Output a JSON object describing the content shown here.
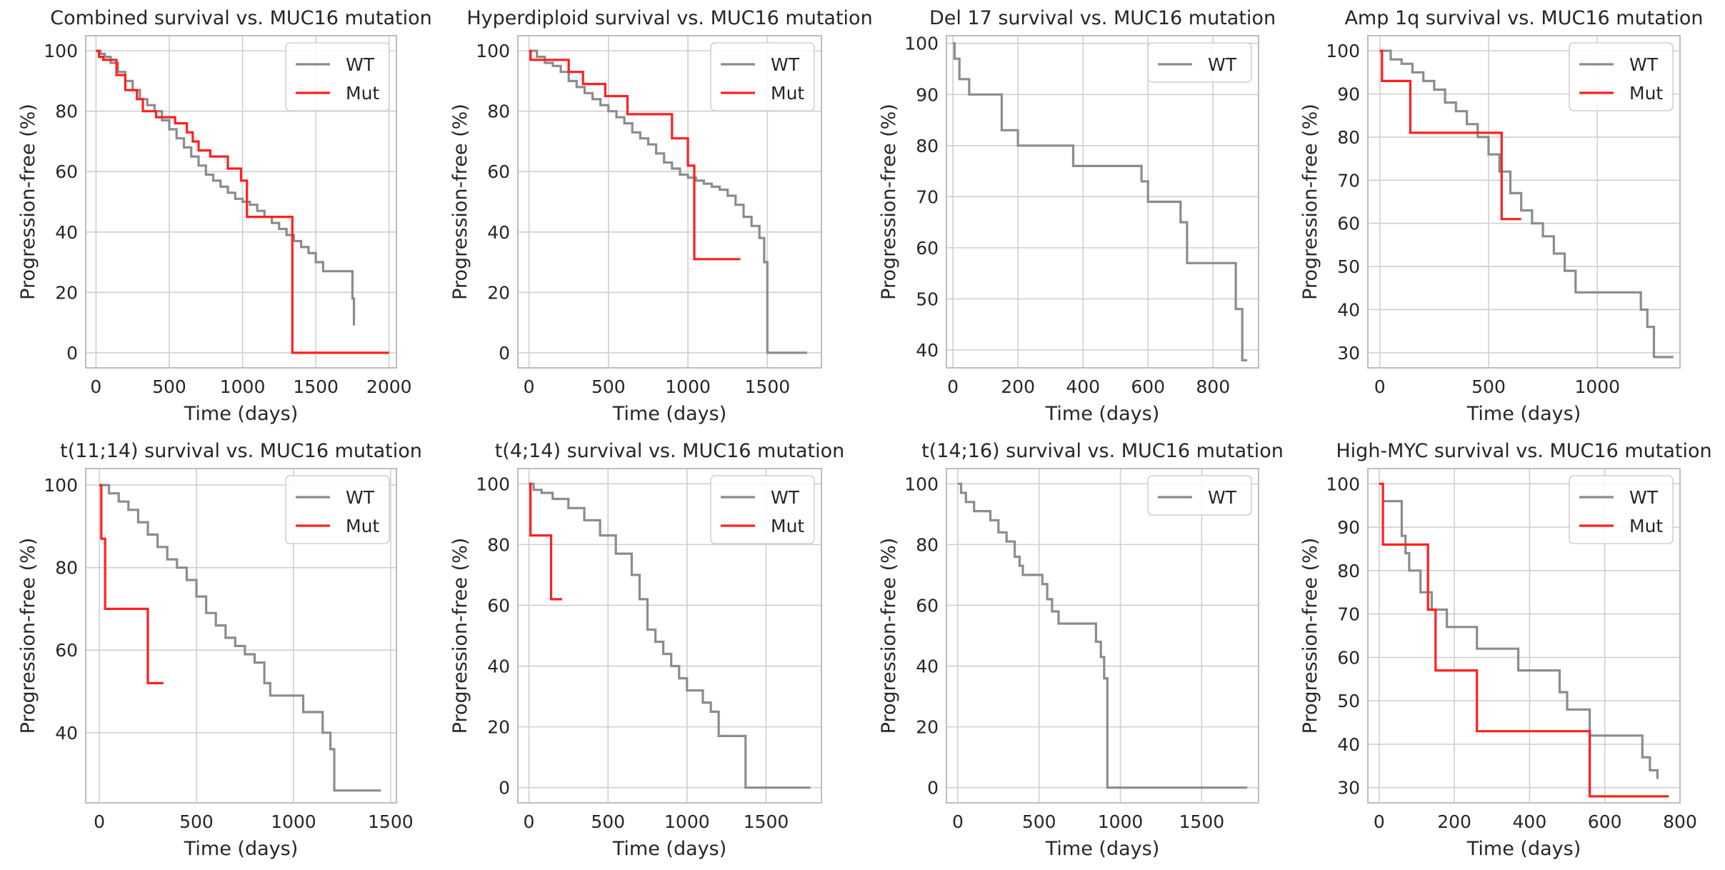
{
  "figure": {
    "wt_color": "#8c8c8c",
    "mut_color": "#ff2020",
    "grid_color": "#cfcfcf",
    "spine_color": "#bdbdbd"
  },
  "chart_data": [
    {
      "type": "line",
      "title": "Combined survival vs. MUC16 mutation",
      "xlabel": "Time (days)",
      "ylabel": "Progression-free (%)",
      "xlim": [
        -70,
        2050
      ],
      "ylim": [
        -5,
        105
      ],
      "xticks": [
        0,
        500,
        1000,
        1500,
        2000
      ],
      "yticks": [
        0,
        20,
        40,
        60,
        80,
        100
      ],
      "legend": [
        "WT",
        "Mut"
      ],
      "legend_position": "top-right",
      "series": [
        {
          "name": "WT",
          "x": [
            0,
            30,
            60,
            100,
            150,
            200,
            250,
            300,
            350,
            400,
            450,
            500,
            550,
            600,
            650,
            700,
            750,
            800,
            850,
            900,
            950,
            1000,
            1050,
            1100,
            1150,
            1200,
            1250,
            1300,
            1350,
            1400,
            1450,
            1500,
            1550,
            1750,
            1760
          ],
          "y": [
            100,
            99,
            98,
            96,
            93,
            90,
            87,
            84,
            82,
            80,
            77,
            74,
            71,
            68,
            65,
            62,
            59,
            57,
            55,
            53,
            51,
            50,
            49,
            47,
            45,
            43,
            41,
            39,
            37,
            35,
            33,
            30,
            27,
            18,
            9
          ]
        },
        {
          "name": "Mut",
          "x": [
            0,
            20,
            50,
            140,
            200,
            280,
            320,
            410,
            540,
            620,
            660,
            700,
            780,
            900,
            990,
            1030,
            1330,
            1340,
            2000
          ],
          "y": [
            100,
            98,
            97,
            92,
            87,
            84,
            80,
            78,
            76,
            73,
            70,
            67,
            65,
            61,
            57,
            45,
            45,
            0,
            0
          ]
        }
      ]
    },
    {
      "type": "line",
      "title": "Hyperdiploid survival vs. MUC16 mutation",
      "xlabel": "Time (days)",
      "ylabel": "Progression-free (%)",
      "xlim": [
        -70,
        1840
      ],
      "ylim": [
        -5,
        105
      ],
      "xticks": [
        0,
        500,
        1000,
        1500
      ],
      "yticks": [
        0,
        20,
        40,
        60,
        80,
        100
      ],
      "legend": [
        "WT",
        "Mut"
      ],
      "legend_position": "top-right",
      "series": [
        {
          "name": "WT",
          "x": [
            0,
            50,
            100,
            150,
            200,
            250,
            300,
            350,
            400,
            450,
            500,
            550,
            600,
            650,
            700,
            750,
            800,
            850,
            900,
            950,
            1000,
            1050,
            1100,
            1150,
            1200,
            1250,
            1300,
            1350,
            1400,
            1450,
            1480,
            1500,
            1750
          ],
          "y": [
            100,
            98,
            96,
            95,
            93,
            90,
            88,
            86,
            84,
            82,
            80,
            78,
            76,
            73,
            71,
            69,
            66,
            63,
            61,
            59,
            58,
            57,
            56,
            55,
            54,
            52,
            49,
            45,
            42,
            38,
            30,
            0,
            0
          ]
        },
        {
          "name": "Mut",
          "x": [
            0,
            10,
            250,
            340,
            480,
            620,
            900,
            1000,
            1040,
            1330
          ],
          "y": [
            100,
            97,
            93,
            89,
            85,
            79,
            71,
            62,
            31,
            31
          ]
        }
      ]
    },
    {
      "type": "line",
      "title": "Del 17 survival vs. MUC16 mutation",
      "xlabel": "Time (days)",
      "ylabel": "Progression-free (%)",
      "xlim": [
        -20,
        940
      ],
      "ylim": [
        36.5,
        101.5
      ],
      "xticks": [
        0,
        200,
        400,
        600,
        800
      ],
      "yticks": [
        40,
        50,
        60,
        70,
        80,
        90,
        100
      ],
      "legend": [
        "WT"
      ],
      "legend_position": "top-right",
      "series": [
        {
          "name": "WT",
          "x": [
            0,
            5,
            20,
            50,
            130,
            150,
            200,
            370,
            580,
            600,
            700,
            720,
            870,
            890,
            905
          ],
          "y": [
            100,
            97,
            93,
            90,
            90,
            83,
            80,
            76,
            73,
            69,
            65,
            57,
            48,
            38,
            38
          ]
        }
      ]
    },
    {
      "type": "line",
      "title": "Amp 1q survival vs. MUC16 mutation",
      "xlabel": "Time (days)",
      "ylabel": "Progression-free (%)",
      "xlim": [
        -55,
        1380
      ],
      "ylim": [
        26.5,
        103.5
      ],
      "xticks": [
        0,
        500,
        1000
      ],
      "yticks": [
        30,
        40,
        50,
        60,
        70,
        80,
        90,
        100
      ],
      "legend": [
        "WT",
        "Mut"
      ],
      "legend_position": "top-right",
      "series": [
        {
          "name": "WT",
          "x": [
            0,
            50,
            100,
            150,
            200,
            250,
            300,
            350,
            400,
            450,
            500,
            550,
            600,
            650,
            700,
            750,
            800,
            850,
            900,
            1200,
            1230,
            1260,
            1350
          ],
          "y": [
            100,
            98,
            97,
            95,
            93,
            91,
            88,
            86,
            83,
            80,
            76,
            72,
            67,
            63,
            60,
            57,
            53,
            49,
            44,
            40,
            36,
            29,
            29
          ]
        },
        {
          "name": "Mut",
          "x": [
            0,
            10,
            140,
            550,
            560,
            650
          ],
          "y": [
            100,
            93,
            81,
            81,
            61,
            61
          ]
        }
      ]
    },
    {
      "type": "line",
      "title": "t(11;14) survival vs. MUC16 mutation",
      "xlabel": "Time (days)",
      "ylabel": "Progression-free (%)",
      "xlim": [
        -70,
        1530
      ],
      "ylim": [
        23,
        104
      ],
      "xticks": [
        0,
        500,
        1000,
        1500
      ],
      "yticks": [
        40,
        60,
        80,
        100
      ],
      "legend": [
        "WT",
        "Mut"
      ],
      "legend_position": "top-right",
      "series": [
        {
          "name": "WT",
          "x": [
            0,
            50,
            100,
            150,
            200,
            250,
            300,
            350,
            400,
            450,
            500,
            550,
            600,
            650,
            700,
            750,
            800,
            850,
            880,
            1050,
            1080,
            1150,
            1190,
            1210,
            1450
          ],
          "y": [
            100,
            98,
            96,
            94,
            91,
            88,
            85,
            82,
            80,
            77,
            73,
            69,
            66,
            63,
            61,
            59,
            57,
            52,
            49,
            45,
            45,
            40,
            36,
            26,
            26
          ]
        },
        {
          "name": "Mut",
          "x": [
            0,
            10,
            30,
            250,
            330
          ],
          "y": [
            100,
            87,
            70,
            52,
            52
          ]
        }
      ]
    },
    {
      "type": "line",
      "title": "t(4;14) survival vs. MUC16 mutation",
      "xlabel": "Time (days)",
      "ylabel": "Progression-free (%)",
      "xlim": [
        -70,
        1850
      ],
      "ylim": [
        -5,
        105
      ],
      "xticks": [
        0,
        500,
        1000,
        1500
      ],
      "yticks": [
        0,
        20,
        40,
        60,
        80,
        100
      ],
      "legend": [
        "WT",
        "Mut"
      ],
      "legend_position": "top-right",
      "series": [
        {
          "name": "WT",
          "x": [
            0,
            30,
            80,
            150,
            250,
            350,
            450,
            550,
            650,
            700,
            750,
            800,
            850,
            900,
            950,
            1000,
            1100,
            1150,
            1200,
            1350,
            1370,
            1780
          ],
          "y": [
            100,
            98,
            97,
            95,
            92,
            88,
            83,
            77,
            70,
            62,
            52,
            48,
            44,
            40,
            36,
            32,
            28,
            25,
            17,
            17,
            0,
            0
          ]
        },
        {
          "name": "Mut",
          "x": [
            0,
            10,
            140,
            210
          ],
          "y": [
            100,
            83,
            62,
            62
          ]
        }
      ]
    },
    {
      "type": "line",
      "title": "t(14;16) survival vs. MUC16 mutation",
      "xlabel": "Time (days)",
      "ylabel": "Progression-free (%)",
      "xlim": [
        -70,
        1850
      ],
      "ylim": [
        -5,
        105
      ],
      "xticks": [
        0,
        500,
        1000,
        1500
      ],
      "yticks": [
        0,
        20,
        40,
        60,
        80,
        100
      ],
      "legend": [
        "WT"
      ],
      "legend_position": "top-right",
      "series": [
        {
          "name": "WT",
          "x": [
            0,
            20,
            50,
            100,
            200,
            250,
            300,
            350,
            380,
            400,
            520,
            550,
            580,
            620,
            850,
            880,
            900,
            920,
            1780
          ],
          "y": [
            100,
            97,
            94,
            91,
            88,
            84,
            81,
            76,
            73,
            70,
            67,
            62,
            58,
            54,
            48,
            43,
            36,
            0,
            0
          ]
        }
      ]
    },
    {
      "type": "line",
      "title": "High-MYC survival vs. MUC16 mutation",
      "xlabel": "Time (days)",
      "ylabel": "Progression-free (%)",
      "xlim": [
        -30,
        800
      ],
      "ylim": [
        26.5,
        103.5
      ],
      "xticks": [
        0,
        200,
        400,
        600,
        800
      ],
      "yticks": [
        30,
        40,
        50,
        60,
        70,
        80,
        90,
        100
      ],
      "legend": [
        "WT",
        "Mut"
      ],
      "legend_position": "top-right",
      "series": [
        {
          "name": "WT",
          "x": [
            0,
            10,
            60,
            70,
            80,
            110,
            140,
            180,
            260,
            370,
            480,
            500,
            560,
            700,
            720,
            740
          ],
          "y": [
            100,
            96,
            88,
            84,
            80,
            75,
            71,
            67,
            62,
            57,
            52,
            48,
            42,
            37,
            34,
            32
          ]
        },
        {
          "name": "Mut",
          "x": [
            0,
            10,
            130,
            150,
            260,
            550,
            560,
            770
          ],
          "y": [
            100,
            86,
            71,
            57,
            43,
            43,
            28,
            28
          ]
        }
      ]
    }
  ]
}
